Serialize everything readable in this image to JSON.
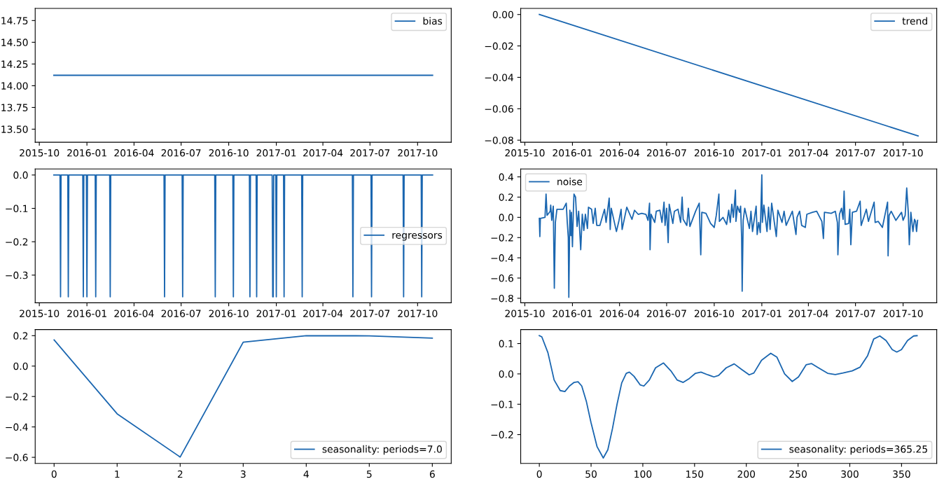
{
  "chart_data": [
    {
      "type": "line",
      "legend": "upper right",
      "xlim": [
        "2015-09-23",
        "2017-12-05"
      ],
      "xticks": [
        "2015-10",
        "2016-01",
        "2016-04",
        "2016-07",
        "2016-10",
        "2017-01",
        "2017-04",
        "2017-07",
        "2017-10"
      ],
      "ylim": [
        13.35,
        14.89
      ],
      "yticks": [
        {
          "value": 13.5,
          "label": "13.50"
        },
        {
          "value": 13.75,
          "label": "13.75"
        },
        {
          "value": 14.0,
          "label": "14.00"
        },
        {
          "value": 14.25,
          "label": "14.25"
        },
        {
          "value": 14.5,
          "label": "14.50"
        },
        {
          "value": 14.75,
          "label": "14.75"
        }
      ],
      "series": [
        {
          "name": "bias",
          "color": "#1a66b0",
          "x": [
            "2015-10-29",
            "2017-10-30"
          ],
          "values": [
            14.12,
            14.12
          ]
        }
      ]
    },
    {
      "type": "line",
      "legend": "upper right",
      "xlim": [
        "2015-09-23",
        "2017-12-05"
      ],
      "xticks": [
        "2015-10",
        "2016-01",
        "2016-04",
        "2016-07",
        "2016-10",
        "2017-01",
        "2017-04",
        "2017-07",
        "2017-10"
      ],
      "ylim": [
        -0.0813,
        0.0039
      ],
      "yticks": [
        {
          "value": 0,
          "label": "0.00"
        },
        {
          "value": -0.02,
          "label": "−0.02"
        },
        {
          "value": -0.04,
          "label": "−0.04"
        },
        {
          "value": -0.06,
          "label": "−0.06"
        },
        {
          "value": -0.08,
          "label": "−0.08"
        }
      ],
      "series": [
        {
          "name": "trend",
          "color": "#1a66b0",
          "x": [
            "2015-10-29",
            "2017-10-30"
          ],
          "values": [
            0,
            -0.0773
          ]
        }
      ]
    },
    {
      "type": "line",
      "legend": "center right",
      "xlim": [
        "2015-09-23",
        "2017-12-05"
      ],
      "xticks": [
        "2015-10",
        "2016-01",
        "2016-04",
        "2016-07",
        "2016-10",
        "2017-01",
        "2017-04",
        "2017-07",
        "2017-10"
      ],
      "ylim": [
        -0.383,
        0.018
      ],
      "yticks": [
        {
          "value": 0,
          "label": "0.0"
        },
        {
          "value": -0.1,
          "label": "−0.1"
        },
        {
          "value": -0.2,
          "label": "−0.2"
        },
        {
          "value": -0.3,
          "label": "−0.3"
        }
      ],
      "series": [
        {
          "name": "regressors",
          "color": "#1a66b0",
          "x": [
            "2015-10-29",
            "2015-11-10",
            "2015-11-11",
            "2015-11-12",
            "2015-11-25",
            "2015-11-26",
            "2015-11-27",
            "2015-12-24",
            "2015-12-25",
            "2015-12-26",
            "2015-12-31",
            "2016-01-01",
            "2016-01-02",
            "2016-01-17",
            "2016-01-18",
            "2016-01-19",
            "2016-02-14",
            "2016-02-15",
            "2016-02-16",
            "2016-05-29",
            "2016-05-30",
            "2016-05-31",
            "2016-07-03",
            "2016-07-04",
            "2016-07-05",
            "2016-09-04",
            "2016-09-05",
            "2016-09-06",
            "2016-10-09",
            "2016-10-10",
            "2016-10-11",
            "2016-11-10",
            "2016-11-11",
            "2016-11-12",
            "2016-11-23",
            "2016-11-24",
            "2016-11-25",
            "2016-12-24",
            "2016-12-25",
            "2016-12-26",
            "2016-12-27",
            "2016-12-31",
            "2017-01-01",
            "2017-01-02",
            "2017-01-15",
            "2017-01-16",
            "2017-01-17",
            "2017-02-19",
            "2017-02-20",
            "2017-02-21",
            "2017-05-28",
            "2017-05-29",
            "2017-05-30",
            "2017-07-03",
            "2017-07-04",
            "2017-07-05",
            "2017-09-03",
            "2017-09-04",
            "2017-09-05",
            "2017-10-08",
            "2017-10-09",
            "2017-10-10",
            "2017-10-30"
          ],
          "values": [
            0,
            0,
            -0.365,
            0,
            0,
            -0.365,
            0,
            0,
            -0.365,
            0,
            0,
            -0.365,
            0,
            0,
            -0.365,
            0,
            0,
            -0.365,
            0,
            0,
            -0.365,
            0,
            0,
            -0.365,
            0,
            0,
            -0.365,
            0,
            0,
            -0.365,
            0,
            0,
            -0.365,
            0,
            0,
            -0.365,
            0,
            0,
            -0.365,
            -0.365,
            0,
            0,
            -0.365,
            0,
            0,
            -0.365,
            0,
            0,
            -0.365,
            0,
            0,
            -0.365,
            0,
            0,
            -0.365,
            0,
            0,
            -0.365,
            0,
            0,
            -0.365,
            0,
            0
          ]
        }
      ]
    },
    {
      "type": "line",
      "legend": "upper left",
      "xlim": [
        "2015-09-23",
        "2017-12-05"
      ],
      "xticks": [
        "2015-10",
        "2016-01",
        "2016-04",
        "2016-07",
        "2016-10",
        "2017-01",
        "2017-04",
        "2017-07",
        "2017-10"
      ],
      "ylim": [
        -0.845,
        0.478
      ],
      "yticks": [
        {
          "value": -0.8,
          "label": "−0.8"
        },
        {
          "value": -0.6,
          "label": "−0.6"
        },
        {
          "value": -0.4,
          "label": "−0.4"
        },
        {
          "value": -0.2,
          "label": "−0.2"
        },
        {
          "value": 0,
          "label": "0.0"
        },
        {
          "value": 0.2,
          "label": "0.2"
        },
        {
          "value": 0.4,
          "label": "0.4"
        }
      ],
      "series": [
        {
          "name": "noise",
          "color": "#1a66b0",
          "x": [
            "2015-10-29",
            "2015-10-30",
            "2015-10-31",
            "2015-11-09",
            "2015-11-11",
            "2015-11-13",
            "2015-11-19",
            "2015-11-20",
            "2015-11-22",
            "2015-11-25",
            "2015-11-27",
            "2015-11-29",
            "2015-12-02",
            "2015-12-08",
            "2015-12-14",
            "2015-12-20",
            "2015-12-22",
            "2015-12-24",
            "2015-12-25",
            "2015-12-27",
            "2015-12-29",
            "2015-12-30",
            "2016-01-01",
            "2016-01-03",
            "2016-01-04",
            "2016-01-07",
            "2016-01-10",
            "2016-01-13",
            "2016-01-17",
            "2016-01-20",
            "2016-01-23",
            "2016-01-26",
            "2016-01-30",
            "2016-02-01",
            "2016-02-07",
            "2016-02-10",
            "2016-02-14",
            "2016-02-17",
            "2016-02-23",
            "2016-03-03",
            "2016-03-06",
            "2016-03-12",
            "2016-03-14",
            "2016-03-16",
            "2016-03-26",
            "2016-03-31",
            "2016-04-04",
            "2016-04-06",
            "2016-04-15",
            "2016-04-25",
            "2016-04-30",
            "2016-05-07",
            "2016-05-14",
            "2016-05-22",
            "2016-05-26",
            "2016-05-29",
            "2016-05-30",
            "2016-06-01",
            "2016-06-08",
            "2016-06-11",
            "2016-06-18",
            "2016-06-22",
            "2016-06-26",
            "2016-06-28",
            "2016-07-01",
            "2016-07-04",
            "2016-07-06",
            "2016-07-13",
            "2016-07-16",
            "2016-07-23",
            "2016-07-28",
            "2016-07-31",
            "2016-08-02",
            "2016-08-09",
            "2016-08-12",
            "2016-08-15",
            "2016-08-26",
            "2016-09-02",
            "2016-09-05",
            "2016-09-07",
            "2016-09-15",
            "2016-09-24",
            "2016-10-01",
            "2016-10-05",
            "2016-10-10",
            "2016-10-11",
            "2016-10-18",
            "2016-10-25",
            "2016-10-29",
            "2016-11-01",
            "2016-11-04",
            "2016-11-07",
            "2016-11-11",
            "2016-11-12",
            "2016-11-15",
            "2016-11-19",
            "2016-11-21",
            "2016-11-23",
            "2016-11-24",
            "2016-11-26",
            "2016-11-29",
            "2016-12-08",
            "2016-12-11",
            "2016-12-14",
            "2016-12-21",
            "2016-12-23",
            "2016-12-26",
            "2016-12-29",
            "2017-01-01",
            "2017-01-02",
            "2017-01-05",
            "2017-01-11",
            "2017-01-14",
            "2017-01-17",
            "2017-01-20",
            "2017-01-29",
            "2017-02-01",
            "2017-02-09",
            "2017-02-13",
            "2017-02-17",
            "2017-03-01",
            "2017-03-08",
            "2017-03-10",
            "2017-03-15",
            "2017-03-19",
            "2017-03-26",
            "2017-03-29",
            "2017-04-09",
            "2017-04-17",
            "2017-04-27",
            "2017-04-30",
            "2017-05-02",
            "2017-05-15",
            "2017-05-23",
            "2017-05-27",
            "2017-05-28",
            "2017-05-31",
            "2017-06-04",
            "2017-06-07",
            "2017-06-09",
            "2017-06-11",
            "2017-06-18",
            "2017-06-20",
            "2017-06-22",
            "2017-06-25",
            "2017-07-03",
            "2017-07-10",
            "2017-07-12",
            "2017-07-22",
            "2017-07-26",
            "2017-08-06",
            "2017-08-08",
            "2017-08-14",
            "2017-08-22",
            "2017-08-28",
            "2017-09-01",
            "2017-09-02",
            "2017-09-04",
            "2017-09-08",
            "2017-09-17",
            "2017-09-28",
            "2017-10-01",
            "2017-10-05",
            "2017-10-08",
            "2017-10-11",
            "2017-10-13",
            "2017-10-16",
            "2017-10-20",
            "2017-10-23",
            "2017-10-25",
            "2017-10-27",
            "2017-10-29"
          ],
          "values": [
            -0.01,
            -0.19,
            -0.01,
            0.0,
            0.23,
            0.02,
            0.06,
            0.12,
            -0.03,
            0.11,
            -0.7,
            -0.05,
            0.08,
            0.08,
            0.08,
            0.14,
            -0.05,
            -0.2,
            -0.79,
            0.07,
            -0.18,
            0.05,
            -0.29,
            0.1,
            0.23,
            0.2,
            -0.09,
            0.06,
            -0.32,
            0.03,
            -0.13,
            0.03,
            -0.11,
            0.1,
            0.08,
            -0.06,
            0.09,
            -0.08,
            -0.08,
            0.08,
            -0.05,
            0.19,
            -0.12,
            0.09,
            -0.14,
            -0.03,
            0.08,
            -0.12,
            0.1,
            -0.02,
            0.07,
            0.03,
            0.04,
            0.03,
            -0.03,
            0.14,
            -0.32,
            0.03,
            -0.05,
            0.06,
            0.07,
            -0.05,
            0.15,
            -0.08,
            0.09,
            -0.25,
            0.13,
            -0.06,
            0.06,
            0.08,
            -0.05,
            0.2,
            -0.02,
            -0.08,
            0.09,
            -0.09,
            0.06,
            0.14,
            -0.37,
            0.05,
            0.04,
            -0.06,
            -0.1,
            0.02,
            0.23,
            -0.04,
            0.0,
            -0.07,
            0.07,
            -0.05,
            0.13,
            0.0,
            0.27,
            -0.04,
            0.11,
            0.05,
            0.11,
            -0.2,
            -0.73,
            -0.03,
            0.09,
            -0.11,
            0.06,
            -0.14,
            0.11,
            -0.17,
            -0.05,
            -0.15,
            0.42,
            -0.05,
            0.12,
            -0.14,
            0.1,
            -0.12,
            0.14,
            -0.19,
            0.07,
            -0.05,
            0.06,
            -0.08,
            0.06,
            -0.17,
            0.0,
            0.06,
            -0.08,
            -0.1,
            0.03,
            0.05,
            0.06,
            -0.04,
            -0.21,
            0.05,
            0.04,
            0.06,
            -0.05,
            -0.37,
            0.03,
            0.09,
            -0.02,
            0.26,
            -0.07,
            -0.06,
            0.08,
            -0.27,
            0.05,
            0.06,
            0.16,
            -0.08,
            0.08,
            -0.04,
            0.15,
            -0.05,
            -0.04,
            -0.1,
            0.05,
            0.15,
            -0.38,
            0.02,
            0.06,
            -0.03,
            0.05,
            -0.03,
            0.02,
            0.29,
            0.05,
            -0.27,
            0.05,
            -0.14,
            -0.02,
            -0.04,
            -0.14,
            -0.03
          ]
        }
      ]
    },
    {
      "type": "line",
      "legend": "lower right",
      "xlim": [
        -0.3,
        6.3
      ],
      "xticks": [
        0,
        1,
        2,
        3,
        4,
        5,
        6
      ],
      "ylim": [
        -0.64,
        0.24
      ],
      "yticks": [
        {
          "value": -0.6,
          "label": "−0.6"
        },
        {
          "value": -0.4,
          "label": "−0.4"
        },
        {
          "value": -0.2,
          "label": "−0.2"
        },
        {
          "value": 0,
          "label": "0.0"
        },
        {
          "value": 0.2,
          "label": "0.2"
        }
      ],
      "series": [
        {
          "name": "seasonality: periods=7.0",
          "color": "#1a66b0",
          "x": [
            0,
            1,
            2,
            3,
            4,
            5,
            6
          ],
          "values": [
            0.172,
            -0.314,
            -0.598,
            0.157,
            0.2,
            0.199,
            0.184
          ]
        }
      ]
    },
    {
      "type": "line",
      "legend": "lower right",
      "xlim": [
        -18,
        384
      ],
      "xticks": [
        0,
        50,
        100,
        150,
        200,
        250,
        300,
        350
      ],
      "ylim": [
        -0.295,
        0.146
      ],
      "yticks": [
        {
          "value": -0.2,
          "label": "−0.2"
        },
        {
          "value": -0.1,
          "label": "−0.1"
        },
        {
          "value": 0,
          "label": "0.0"
        },
        {
          "value": 0.1,
          "label": "0.1"
        }
      ],
      "series": [
        {
          "name": "seasonality: periods=365.25",
          "color": "#1a66b0",
          "x": [
            0,
            2.4,
            8.3,
            14.3,
            20.2,
            24.7,
            29.1,
            33.6,
            37.4,
            41,
            45.4,
            49.9,
            55.8,
            61.8,
            66.2,
            70.7,
            75.1,
            79.6,
            84,
            87,
            91.5,
            97.4,
            101,
            106.3,
            112.3,
            120,
            127.1,
            133.1,
            139,
            145,
            150.9,
            156.2,
            162.8,
            168.7,
            173.2,
            180.6,
            188.3,
            195.4,
            202.8,
            207.3,
            214.7,
            223.6,
            229.6,
            237,
            244.4,
            250.4,
            257.8,
            263.1,
            269.7,
            278.6,
            286,
            293.4,
            302.3,
            309.8,
            317.2,
            323.1,
            329,
            335,
            341,
            345.4,
            349.9,
            355.8,
            361.7,
            365
          ],
          "values": [
            0.126,
            0.122,
            0.07,
            -0.02,
            -0.055,
            -0.058,
            -0.04,
            -0.028,
            -0.026,
            -0.04,
            -0.09,
            -0.16,
            -0.24,
            -0.277,
            -0.25,
            -0.18,
            -0.1,
            -0.03,
            0.002,
            0.006,
            -0.008,
            -0.036,
            -0.04,
            -0.02,
            0.02,
            0.036,
            0.01,
            -0.02,
            -0.028,
            -0.015,
            0.002,
            0.006,
            -0.003,
            -0.01,
            -0.005,
            0.02,
            0.033,
            0.015,
            -0.003,
            0.003,
            0.045,
            0.068,
            0.055,
            0.0,
            -0.025,
            -0.01,
            0.03,
            0.034,
            0.02,
            0.002,
            -0.002,
            0.003,
            0.01,
            0.022,
            0.06,
            0.115,
            0.125,
            0.11,
            0.08,
            0.072,
            0.08,
            0.11,
            0.125,
            0.126
          ]
        }
      ]
    }
  ]
}
